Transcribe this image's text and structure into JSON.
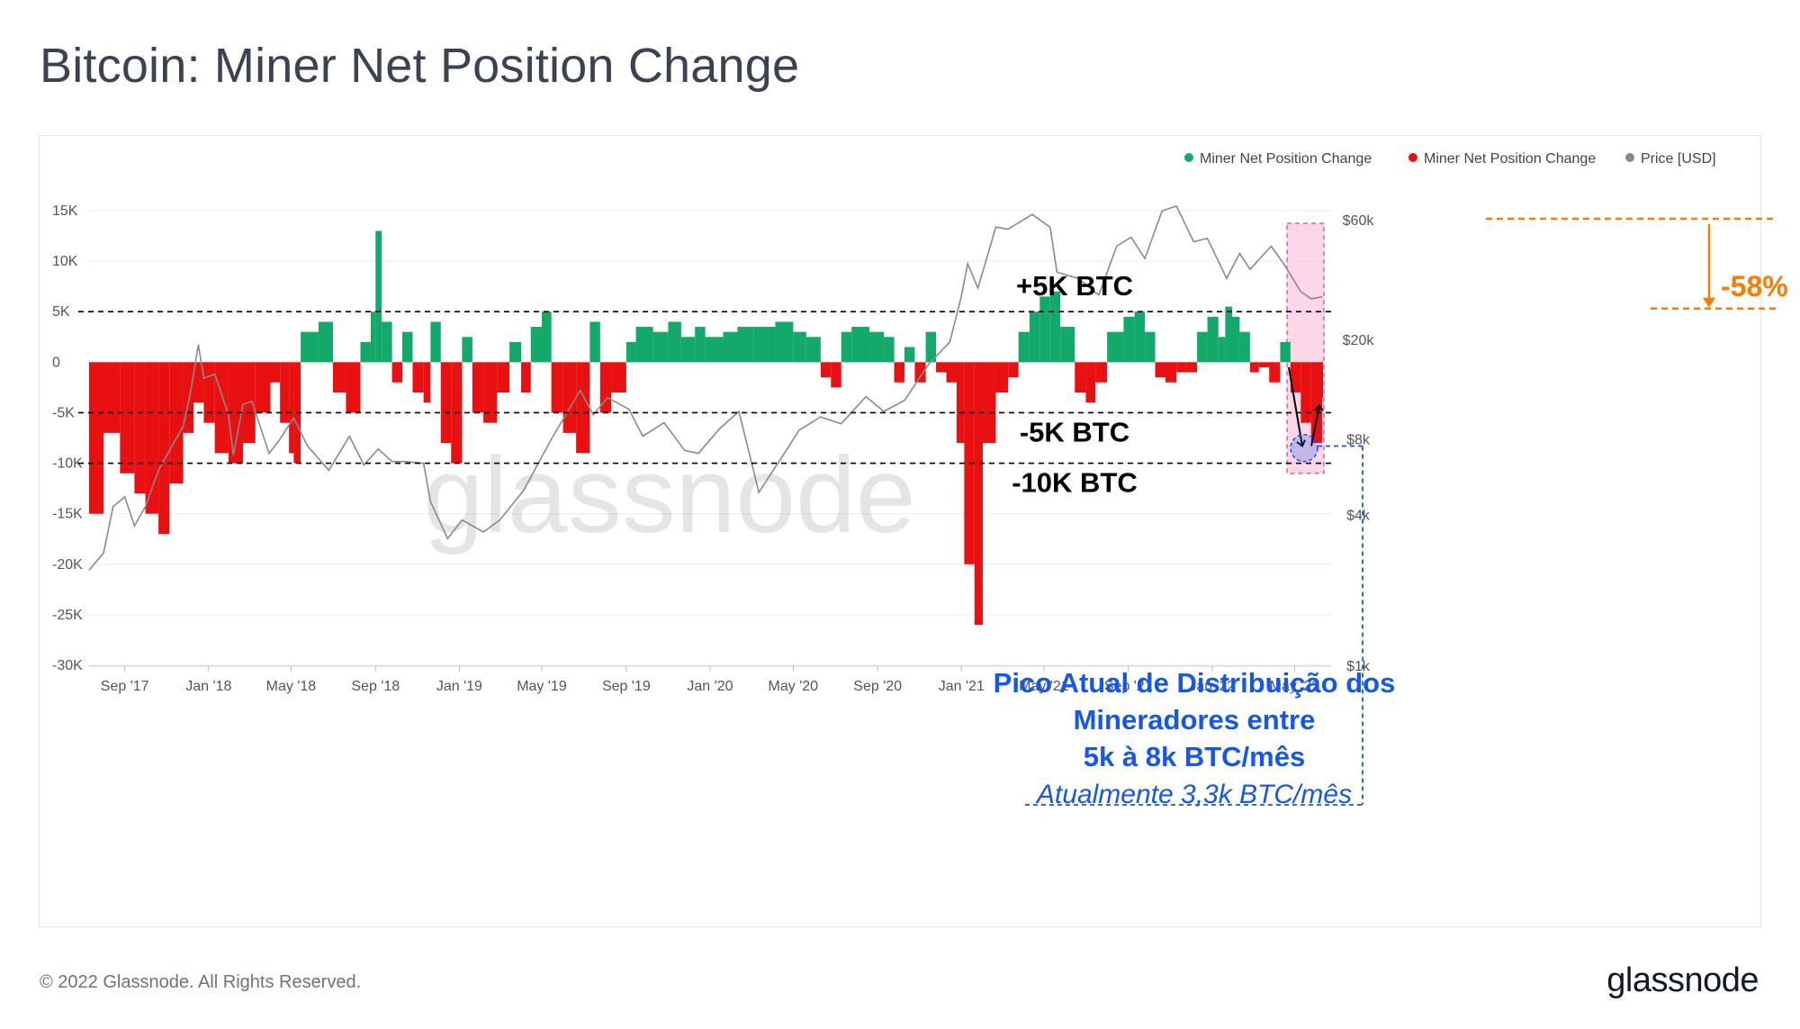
{
  "page": {
    "title": "Bitcoin: Miner Net Position Change",
    "copyright": "© 2022 Glassnode. All Rights Reserved.",
    "brand": "glassnode",
    "watermark": "glassnode"
  },
  "colors": {
    "positive": "#13a96a",
    "negative": "#e81010",
    "price": "#8a8a8a",
    "highlight_pink": "#f7b6d4",
    "drawdown_orange": "#ff7a00",
    "annotation_blue": "#1556f0"
  },
  "chart_data": {
    "type": "bar",
    "title": "Bitcoin: Miner Net Position Change",
    "legend": [
      {
        "label": "Miner Net Position Change",
        "color": "#13a96a"
      },
      {
        "label": "Miner Net Position Change",
        "color": "#e81010"
      },
      {
        "label": "Price [USD]",
        "color": "#8a8a8a"
      }
    ],
    "legend_position": "top-right",
    "x_ticks": [
      "Sep '17",
      "Jan '18",
      "May '18",
      "Sep '18",
      "Jan '19",
      "May '19",
      "Sep '19",
      "Jan '20",
      "May '20",
      "Sep '20",
      "Jan '21",
      "May '21",
      "Sep '21",
      "Jan '22",
      "May '22"
    ],
    "x_range": [
      "2017-07-11",
      "2022-06-10"
    ],
    "y_left": {
      "ticks": [
        "15K",
        "10K",
        "5K",
        "0",
        "-5K",
        "-10K",
        "-15K",
        "-20K",
        "-25K",
        "-30K"
      ],
      "range": [
        -30000,
        15000
      ],
      "unit": "BTC"
    },
    "y_right": {
      "ticks": [
        "$60k",
        "$20k",
        "$8k",
        "$4k",
        "$1k"
      ],
      "scale": "log",
      "range": [
        1000,
        60000
      ]
    },
    "grid": true,
    "series": [
      {
        "name": "Miner Net Position Change",
        "kind": "bar",
        "points": [
          [
            "2017-07-11",
            -15000
          ],
          [
            "2017-08-01",
            -7000
          ],
          [
            "2017-08-25",
            -11000
          ],
          [
            "2017-09-15",
            -13000
          ],
          [
            "2017-10-01",
            -15000
          ],
          [
            "2017-10-20",
            -17000
          ],
          [
            "2017-11-05",
            -12000
          ],
          [
            "2017-11-25",
            -7000
          ],
          [
            "2017-12-10",
            -4000
          ],
          [
            "2017-12-25",
            -6000
          ],
          [
            "2018-01-10",
            -9000
          ],
          [
            "2018-01-30",
            -10000
          ],
          [
            "2018-02-20",
            -8000
          ],
          [
            "2018-03-10",
            -5000
          ],
          [
            "2018-04-01",
            -2000
          ],
          [
            "2018-04-15",
            -6000
          ],
          [
            "2018-04-28",
            -9000
          ],
          [
            "2018-05-05",
            -10000
          ],
          [
            "2018-05-15",
            3000
          ],
          [
            "2018-06-10",
            4000
          ],
          [
            "2018-07-01",
            -3000
          ],
          [
            "2018-07-20",
            -5000
          ],
          [
            "2018-08-10",
            2000
          ],
          [
            "2018-08-25",
            5000
          ],
          [
            "2018-09-01",
            13000
          ],
          [
            "2018-09-10",
            4000
          ],
          [
            "2018-09-25",
            -2000
          ],
          [
            "2018-10-10",
            3000
          ],
          [
            "2018-10-25",
            -3000
          ],
          [
            "2018-11-10",
            -4000
          ],
          [
            "2018-11-20",
            4000
          ],
          [
            "2018-12-05",
            -8000
          ],
          [
            "2018-12-20",
            -10000
          ],
          [
            "2019-01-05",
            2500
          ],
          [
            "2019-01-20",
            -5000
          ],
          [
            "2019-02-05",
            -6000
          ],
          [
            "2019-02-25",
            -3000
          ],
          [
            "2019-03-15",
            2000
          ],
          [
            "2019-04-01",
            -3000
          ],
          [
            "2019-04-15",
            3500
          ],
          [
            "2019-05-01",
            5000
          ],
          [
            "2019-05-15",
            -5000
          ],
          [
            "2019-06-01",
            -7000
          ],
          [
            "2019-06-20",
            -9000
          ],
          [
            "2019-07-10",
            4000
          ],
          [
            "2019-07-25",
            -5000
          ],
          [
            "2019-08-10",
            -3000
          ],
          [
            "2019-09-01",
            2000
          ],
          [
            "2019-09-15",
            3500
          ],
          [
            "2019-10-10",
            3000
          ],
          [
            "2019-11-01",
            4000
          ],
          [
            "2019-11-20",
            2500
          ],
          [
            "2019-12-10",
            3500
          ],
          [
            "2019-12-25",
            2500
          ],
          [
            "2020-01-20",
            3000
          ],
          [
            "2020-02-10",
            3500
          ],
          [
            "2020-03-05",
            3500
          ],
          [
            "2020-04-05",
            4000
          ],
          [
            "2020-05-01",
            3000
          ],
          [
            "2020-05-20",
            2500
          ],
          [
            "2020-06-10",
            -1500
          ],
          [
            "2020-06-25",
            -2500
          ],
          [
            "2020-07-10",
            3000
          ],
          [
            "2020-07-25",
            3500
          ],
          [
            "2020-08-20",
            3000
          ],
          [
            "2020-09-10",
            2500
          ],
          [
            "2020-09-25",
            -2000
          ],
          [
            "2020-10-10",
            1500
          ],
          [
            "2020-10-25",
            -2000
          ],
          [
            "2020-11-10",
            3000
          ],
          [
            "2020-11-25",
            -1000
          ],
          [
            "2020-12-10",
            -2000
          ],
          [
            "2020-12-25",
            -8000
          ],
          [
            "2021-01-05",
            -20000
          ],
          [
            "2021-01-20",
            -26000
          ],
          [
            "2021-02-01",
            -8000
          ],
          [
            "2021-02-20",
            -3000
          ],
          [
            "2021-03-10",
            -1500
          ],
          [
            "2021-03-25",
            3000
          ],
          [
            "2021-04-10",
            5000
          ],
          [
            "2021-04-25",
            6500
          ],
          [
            "2021-05-10",
            7000
          ],
          [
            "2021-05-25",
            3500
          ],
          [
            "2021-06-15",
            -3000
          ],
          [
            "2021-07-01",
            -4000
          ],
          [
            "2021-07-15",
            -2000
          ],
          [
            "2021-08-01",
            3000
          ],
          [
            "2021-08-25",
            4500
          ],
          [
            "2021-09-10",
            5000
          ],
          [
            "2021-09-25",
            3000
          ],
          [
            "2021-10-10",
            -1500
          ],
          [
            "2021-10-25",
            -2000
          ],
          [
            "2021-11-10",
            -1000
          ],
          [
            "2021-11-25",
            -1000
          ],
          [
            "2021-12-10",
            3000
          ],
          [
            "2021-12-25",
            4500
          ],
          [
            "2022-01-10",
            2500
          ],
          [
            "2022-01-20",
            5500
          ],
          [
            "2022-01-30",
            4500
          ],
          [
            "2022-02-10",
            3000
          ],
          [
            "2022-02-25",
            -1000
          ],
          [
            "2022-03-10",
            -500
          ],
          [
            "2022-03-25",
            -2000
          ],
          [
            "2022-04-10",
            2000
          ],
          [
            "2022-04-25",
            -3000
          ],
          [
            "2022-05-10",
            -6000
          ],
          [
            "2022-05-25",
            -8000
          ],
          [
            "2022-06-10",
            -3500
          ]
        ]
      },
      {
        "name": "Price [USD]",
        "kind": "line",
        "axis": "right",
        "points": [
          [
            "2017-07-11",
            2400
          ],
          [
            "2017-08-01",
            2800
          ],
          [
            "2017-08-15",
            4300
          ],
          [
            "2017-09-01",
            4700
          ],
          [
            "2017-09-15",
            3600
          ],
          [
            "2017-10-01",
            4300
          ],
          [
            "2017-10-20",
            6000
          ],
          [
            "2017-11-05",
            7200
          ],
          [
            "2017-11-25",
            9000
          ],
          [
            "2017-12-05",
            12000
          ],
          [
            "2017-12-17",
            19000
          ],
          [
            "2017-12-25",
            14000
          ],
          [
            "2018-01-10",
            14500
          ],
          [
            "2018-01-30",
            10000
          ],
          [
            "2018-02-06",
            6900
          ],
          [
            "2018-02-20",
            11000
          ],
          [
            "2018-03-05",
            11300
          ],
          [
            "2018-03-30",
            7000
          ],
          [
            "2018-04-15",
            8000
          ],
          [
            "2018-05-05",
            9700
          ],
          [
            "2018-05-25",
            7500
          ],
          [
            "2018-06-25",
            6000
          ],
          [
            "2018-07-25",
            8200
          ],
          [
            "2018-08-15",
            6300
          ],
          [
            "2018-09-05",
            7300
          ],
          [
            "2018-09-25",
            6500
          ],
          [
            "2018-10-15",
            6500
          ],
          [
            "2018-11-10",
            6400
          ],
          [
            "2018-11-20",
            4500
          ],
          [
            "2018-12-15",
            3200
          ],
          [
            "2019-01-05",
            3800
          ],
          [
            "2019-02-05",
            3400
          ],
          [
            "2019-03-01",
            3800
          ],
          [
            "2019-04-05",
            5000
          ],
          [
            "2019-05-15",
            8000
          ],
          [
            "2019-06-26",
            12500
          ],
          [
            "2019-07-15",
            10000
          ],
          [
            "2019-08-05",
            11700
          ],
          [
            "2019-09-05",
            10500
          ],
          [
            "2019-09-25",
            8200
          ],
          [
            "2019-10-26",
            9300
          ],
          [
            "2019-11-25",
            7200
          ],
          [
            "2019-12-15",
            7000
          ],
          [
            "2020-01-15",
            8800
          ],
          [
            "2020-02-12",
            10300
          ],
          [
            "2020-03-12",
            4900
          ],
          [
            "2020-04-15",
            6800
          ],
          [
            "2020-05-10",
            8700
          ],
          [
            "2020-06-10",
            9800
          ],
          [
            "2020-07-10",
            9200
          ],
          [
            "2020-08-15",
            11800
          ],
          [
            "2020-09-10",
            10300
          ],
          [
            "2020-10-10",
            11400
          ],
          [
            "2020-11-15",
            16000
          ],
          [
            "2020-12-15",
            19500
          ],
          [
            "2020-12-31",
            29000
          ],
          [
            "2021-01-10",
            40000
          ],
          [
            "2021-01-25",
            32000
          ],
          [
            "2021-02-20",
            56000
          ],
          [
            "2021-03-10",
            55000
          ],
          [
            "2021-04-14",
            63000
          ],
          [
            "2021-05-10",
            56000
          ],
          [
            "2021-05-20",
            37000
          ],
          [
            "2021-06-20",
            35000
          ],
          [
            "2021-07-20",
            30000
          ],
          [
            "2021-08-15",
            47000
          ],
          [
            "2021-09-05",
            51000
          ],
          [
            "2021-09-25",
            42000
          ],
          [
            "2021-10-20",
            65000
          ],
          [
            "2021-11-10",
            68000
          ],
          [
            "2021-12-05",
            49000
          ],
          [
            "2021-12-25",
            50500
          ],
          [
            "2022-01-22",
            35000
          ],
          [
            "2022-02-10",
            44000
          ],
          [
            "2022-02-25",
            38000
          ],
          [
            "2022-03-28",
            47000
          ],
          [
            "2022-04-15",
            40000
          ],
          [
            "2022-05-10",
            31000
          ],
          [
            "2022-05-25",
            29000
          ],
          [
            "2022-06-10",
            29500
          ]
        ]
      }
    ],
    "reference_lines": [
      {
        "value": 5000,
        "label": "+5K BTC"
      },
      {
        "value": -5000,
        "label": "-5K BTC"
      },
      {
        "value": -10000,
        "label": "-10K BTC"
      }
    ],
    "annotations": {
      "drawdown_label": "-58%",
      "callout_lines": [
        "Pico Atual de Distribuição dos",
        "Mineradores entre",
        "5k à 8k BTC/mês"
      ],
      "callout_current": "Atualmente 3,3k BTC/mês"
    }
  }
}
